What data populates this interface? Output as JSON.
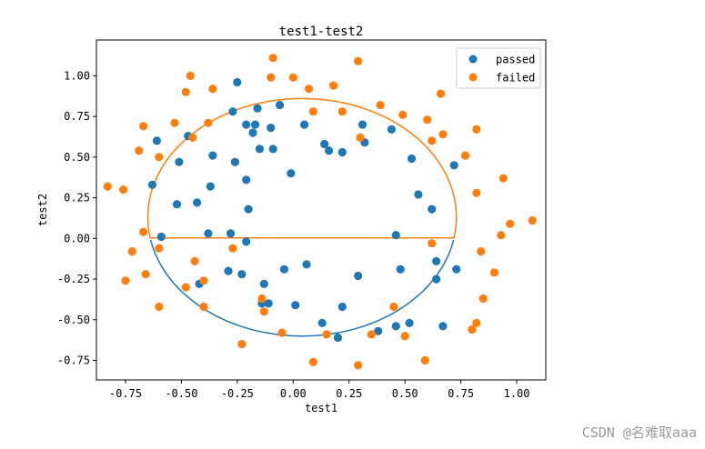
{
  "chart_data": {
    "type": "scatter",
    "title": "test1-test2",
    "xlabel": "test1",
    "ylabel": "test2",
    "xlim": [
      -0.88,
      1.13
    ],
    "ylim": [
      -0.87,
      1.22
    ],
    "xticks": [
      -0.75,
      -0.5,
      -0.25,
      0.0,
      0.25,
      0.5,
      0.75,
      1.0
    ],
    "xticklabels": [
      "-0.75",
      "-0.50",
      "-0.25",
      "0.00",
      "0.25",
      "0.50",
      "0.75",
      "1.00"
    ],
    "yticks": [
      -0.75,
      -0.5,
      -0.25,
      0.0,
      0.25,
      0.5,
      0.75,
      1.0
    ],
    "yticklabels": [
      "-0.75",
      "-0.50",
      "-0.25",
      "0.00",
      "0.25",
      "0.50",
      "0.75",
      "1.00"
    ],
    "grid": false,
    "legend_position": "top-right",
    "series": [
      {
        "name": "passed",
        "color": "#1f77b4",
        "points": [
          [
            -0.25,
            0.96
          ],
          [
            -0.06,
            0.82
          ],
          [
            -0.27,
            0.78
          ],
          [
            -0.16,
            0.8
          ],
          [
            -0.47,
            0.63
          ],
          [
            -0.21,
            0.7
          ],
          [
            -0.17,
            0.7
          ],
          [
            -0.1,
            0.68
          ],
          [
            -0.18,
            0.65
          ],
          [
            0.05,
            0.7
          ],
          [
            -0.61,
            0.6
          ],
          [
            -0.15,
            0.55
          ],
          [
            -0.09,
            0.55
          ],
          [
            0.14,
            0.58
          ],
          [
            0.16,
            0.54
          ],
          [
            0.22,
            0.53
          ],
          [
            0.31,
            0.7
          ],
          [
            0.32,
            0.59
          ],
          [
            0.44,
            0.67
          ],
          [
            -0.51,
            0.47
          ],
          [
            -0.36,
            0.51
          ],
          [
            -0.26,
            0.47
          ],
          [
            -0.01,
            0.4
          ],
          [
            0.53,
            0.49
          ],
          [
            0.72,
            0.45
          ],
          [
            -0.63,
            0.33
          ],
          [
            -0.21,
            0.36
          ],
          [
            -0.37,
            0.32
          ],
          [
            0.56,
            0.27
          ],
          [
            -0.52,
            0.21
          ],
          [
            -0.43,
            0.22
          ],
          [
            -0.2,
            0.18
          ],
          [
            0.62,
            0.18
          ],
          [
            -0.59,
            0.01
          ],
          [
            -0.38,
            0.03
          ],
          [
            -0.28,
            0.03
          ],
          [
            0.46,
            0.02
          ],
          [
            -0.21,
            -0.02
          ],
          [
            0.06,
            -0.16
          ],
          [
            -0.04,
            -0.19
          ],
          [
            -0.29,
            -0.2
          ],
          [
            -0.23,
            -0.22
          ],
          [
            0.48,
            -0.19
          ],
          [
            0.64,
            -0.14
          ],
          [
            0.73,
            -0.19
          ],
          [
            0.29,
            -0.23
          ],
          [
            0.64,
            -0.25
          ],
          [
            -0.42,
            -0.28
          ],
          [
            -0.13,
            -0.28
          ],
          [
            -0.11,
            -0.4
          ],
          [
            0.01,
            -0.41
          ],
          [
            0.22,
            -0.42
          ],
          [
            -0.14,
            -0.4
          ],
          [
            0.13,
            -0.52
          ],
          [
            0.46,
            -0.54
          ],
          [
            0.52,
            -0.52
          ],
          [
            0.67,
            -0.54
          ],
          [
            0.38,
            -0.57
          ],
          [
            0.2,
            -0.61
          ]
        ]
      },
      {
        "name": "failed",
        "color": "#ff7f0e",
        "points": [
          [
            -0.09,
            1.11
          ],
          [
            0.29,
            1.09
          ],
          [
            -0.46,
            1.0
          ],
          [
            -0.1,
            0.99
          ],
          [
            0.0,
            0.99
          ],
          [
            -0.48,
            0.9
          ],
          [
            -0.36,
            0.92
          ],
          [
            0.07,
            0.92
          ],
          [
            0.18,
            0.94
          ],
          [
            0.66,
            0.89
          ],
          [
            0.39,
            0.82
          ],
          [
            0.09,
            0.78
          ],
          [
            0.22,
            0.78
          ],
          [
            0.49,
            0.76
          ],
          [
            0.6,
            0.73
          ],
          [
            -0.67,
            0.69
          ],
          [
            -0.53,
            0.71
          ],
          [
            -0.38,
            0.71
          ],
          [
            0.82,
            0.67
          ],
          [
            0.67,
            0.64
          ],
          [
            -0.45,
            0.62
          ],
          [
            0.3,
            0.62
          ],
          [
            0.62,
            0.6
          ],
          [
            -0.69,
            0.54
          ],
          [
            -0.6,
            0.5
          ],
          [
            0.77,
            0.51
          ],
          [
            -0.83,
            0.32
          ],
          [
            -0.76,
            0.3
          ],
          [
            0.82,
            0.28
          ],
          [
            0.94,
            0.37
          ],
          [
            -0.67,
            0.04
          ],
          [
            0.97,
            0.09
          ],
          [
            1.07,
            0.11
          ],
          [
            0.93,
            0.02
          ],
          [
            -0.6,
            -0.06
          ],
          [
            -0.27,
            -0.06
          ],
          [
            0.62,
            -0.03
          ],
          [
            -0.72,
            -0.08
          ],
          [
            0.84,
            -0.08
          ],
          [
            -0.44,
            -0.14
          ],
          [
            -0.66,
            -0.22
          ],
          [
            0.9,
            -0.21
          ],
          [
            -0.75,
            -0.26
          ],
          [
            -0.4,
            -0.26
          ],
          [
            -0.48,
            -0.3
          ],
          [
            -0.6,
            -0.42
          ],
          [
            -0.4,
            -0.42
          ],
          [
            -0.14,
            -0.37
          ],
          [
            0.45,
            -0.42
          ],
          [
            0.85,
            -0.37
          ],
          [
            -0.13,
            -0.45
          ],
          [
            0.82,
            -0.52
          ],
          [
            0.8,
            -0.56
          ],
          [
            -0.05,
            -0.58
          ],
          [
            0.15,
            -0.59
          ],
          [
            0.35,
            -0.59
          ],
          [
            0.5,
            -0.6
          ],
          [
            -0.23,
            -0.65
          ],
          [
            0.59,
            -0.75
          ],
          [
            0.09,
            -0.76
          ],
          [
            0.29,
            -0.78
          ]
        ]
      }
    ],
    "decision_boundary": {
      "center": [
        0.04,
        0.13
      ],
      "rx": 0.69,
      "ry": 0.73,
      "split_y": 0.0,
      "upper_color": "#ff7f0e",
      "lower_color": "#1f77b4"
    }
  },
  "watermark": "CSDN @名难取aaa"
}
